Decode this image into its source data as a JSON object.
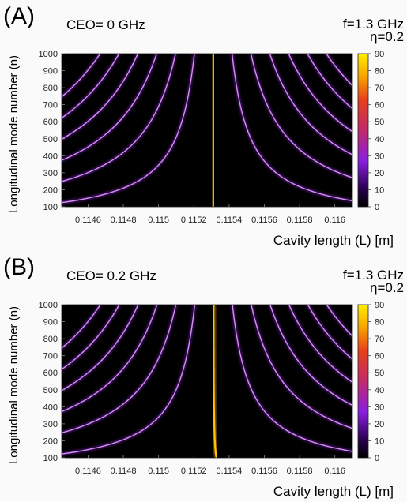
{
  "chart_data": [
    {
      "type": "heatmap",
      "panel_label": "(A)",
      "annotation": "CEO= 0 GHz",
      "params": [
        "f=1.3 GHz",
        "η=0.2"
      ],
      "xlabel": "Cavity length (L) [m]",
      "ylabel": "Longitudinal mode number (n)",
      "xlim": [
        0.11445,
        0.1161
      ],
      "ylim": [
        100,
        1000
      ],
      "xticks": [
        "0.1146",
        "0.1148",
        "0.115",
        "0.1152",
        "0.1154",
        "0.1156",
        "0.1158",
        "0.116"
      ],
      "yticks": [
        "100",
        "200",
        "300",
        "400",
        "500",
        "600",
        "700",
        "800",
        "900",
        "1000"
      ],
      "colorbar": {
        "min": 0,
        "max": 90,
        "ticks": [
          "0",
          "10",
          "20",
          "30",
          "40",
          "50",
          "60",
          "70",
          "80",
          "90"
        ]
      },
      "ceo_ghz": 0,
      "resonance_center_m": 0.11531,
      "orders": [
        -6,
        -5,
        -4,
        -3,
        -2,
        -1,
        0,
        1,
        2,
        3,
        4,
        5,
        6
      ]
    },
    {
      "type": "heatmap",
      "panel_label": "(B)",
      "annotation": "CEO= 0.2 GHz",
      "params": [
        "f=1.3 GHz",
        "η=0.2"
      ],
      "xlabel": "Cavity length (L) [m]",
      "ylabel": "Longitudinal mode number (n)",
      "xlim": [
        0.11445,
        0.1161
      ],
      "ylim": [
        100,
        1000
      ],
      "xticks": [
        "0.1146",
        "0.1148",
        "0.115",
        "0.1152",
        "0.1154",
        "0.1156",
        "0.1158",
        "0.116"
      ],
      "yticks": [
        "100",
        "200",
        "300",
        "400",
        "500",
        "600",
        "700",
        "800",
        "900",
        "1000"
      ],
      "colorbar": {
        "min": 0,
        "max": 90,
        "ticks": [
          "0",
          "10",
          "20",
          "30",
          "40",
          "50",
          "60",
          "70",
          "80",
          "90"
        ]
      },
      "ceo_ghz": 0.2,
      "resonance_center_m": 0.11531,
      "orders": [
        -6,
        -5,
        -4,
        -3,
        -2,
        -1,
        0,
        1,
        2,
        3,
        4,
        5,
        6
      ]
    }
  ]
}
